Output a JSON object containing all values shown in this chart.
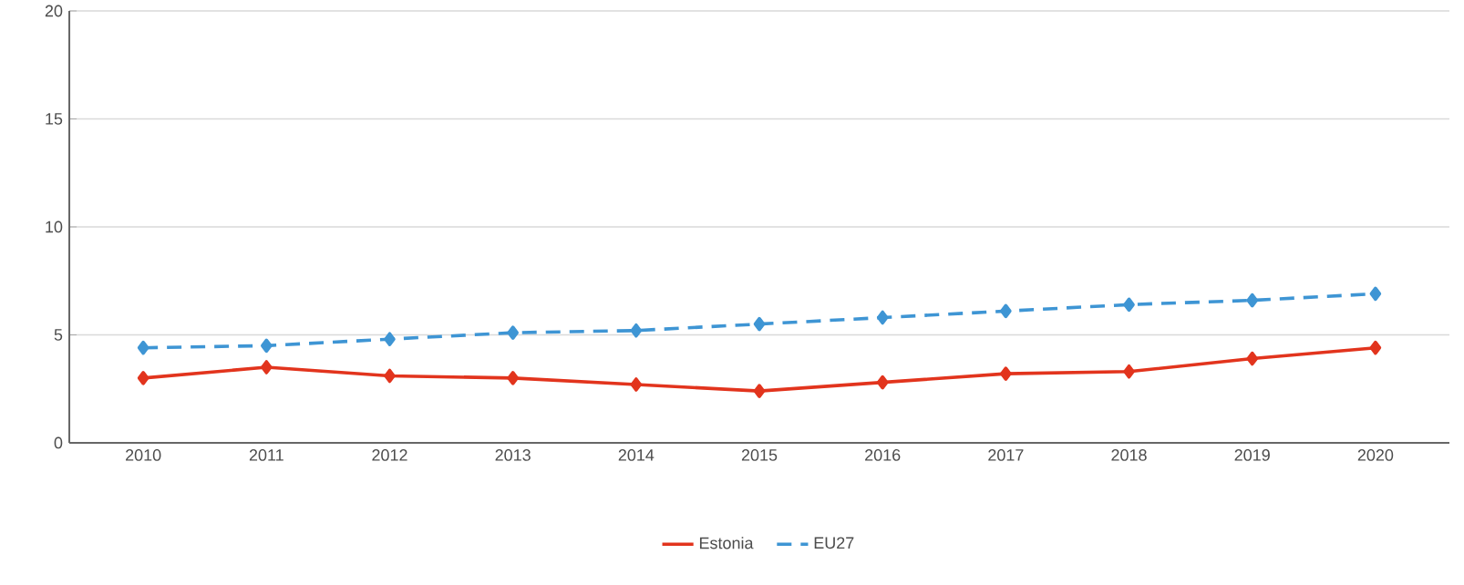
{
  "chart_data": {
    "type": "line",
    "categories": [
      "2010",
      "2011",
      "2012",
      "2013",
      "2014",
      "2015",
      "2016",
      "2017",
      "2018",
      "2019",
      "2020"
    ],
    "series": [
      {
        "name": "Estonia",
        "color": "#e2341d",
        "line_style": "solid",
        "values": [
          3.0,
          3.5,
          3.1,
          3.0,
          2.7,
          2.4,
          2.8,
          3.2,
          3.3,
          3.9,
          4.4
        ]
      },
      {
        "name": "EU27",
        "color": "#3e95d4",
        "line_style": "dashed",
        "values": [
          4.4,
          4.5,
          4.8,
          5.1,
          5.2,
          5.5,
          5.8,
          6.1,
          6.4,
          6.6,
          6.9
        ]
      }
    ],
    "ylim": [
      0,
      20
    ],
    "yticks": [
      0,
      5,
      10,
      15,
      20
    ],
    "grid": "y",
    "legend": "bottom",
    "marker": "diamond"
  }
}
